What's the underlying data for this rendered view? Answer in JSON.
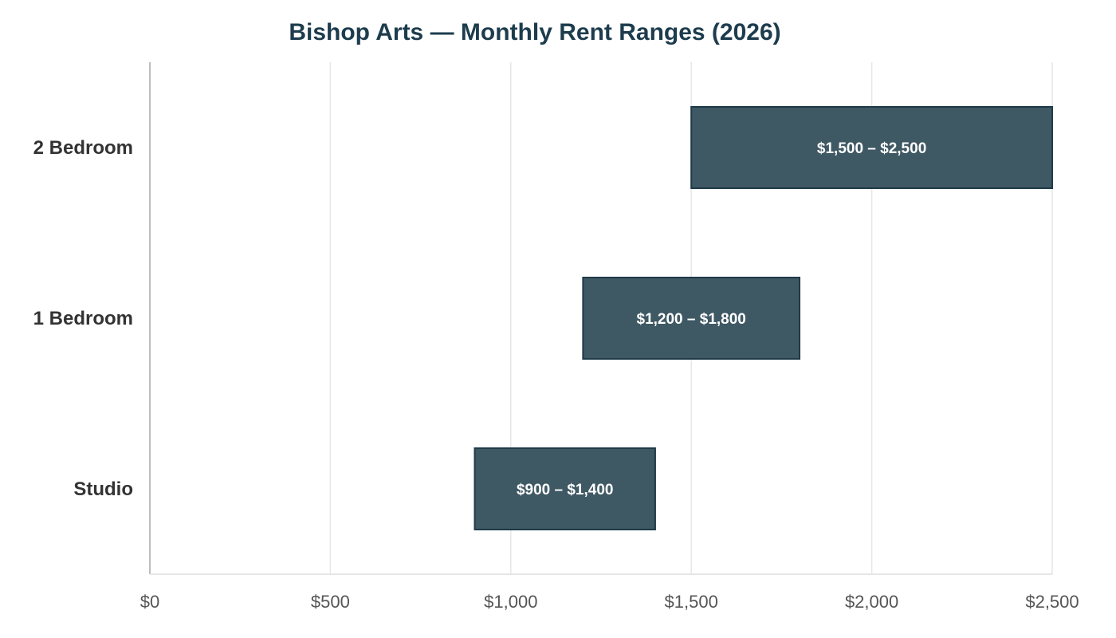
{
  "colors": {
    "bar": "#3f5964",
    "bar_border": "#1f3a47",
    "title": "#1d3c4d",
    "grid": "#e6e6e6",
    "axis": "#bdbdbd"
  },
  "chart_data": {
    "type": "bar",
    "orientation": "horizontal",
    "title": "Bishop Arts — Monthly Rent Ranges (2026)",
    "xlabel": "",
    "ylabel": "",
    "categories": [
      "Studio",
      "1 Bedroom",
      "2 Bedroom"
    ],
    "ranges": [
      {
        "category": "Studio",
        "low": 900,
        "high": 1400,
        "label": "$900 – $1,400"
      },
      {
        "category": "1 Bedroom",
        "low": 1200,
        "high": 1800,
        "label": "$1,200 – $1,800"
      },
      {
        "category": "2 Bedroom",
        "low": 1500,
        "high": 2500,
        "label": "$1,500 – $2,500"
      }
    ],
    "xlim": [
      0,
      2500
    ],
    "x_ticks": [
      0,
      500,
      1000,
      1500,
      2000,
      2500
    ],
    "x_tick_labels": [
      "$0",
      "$500",
      "$1,000",
      "$1,500",
      "$2,000",
      "$2,500"
    ],
    "grid": true,
    "legend": "none"
  }
}
